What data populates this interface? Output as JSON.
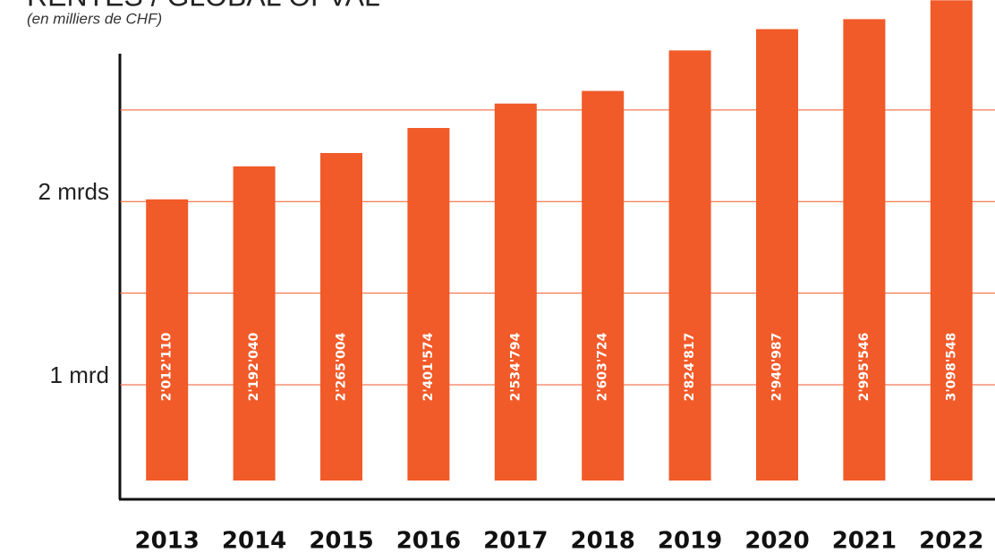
{
  "chart_data": {
    "type": "bar",
    "title": "RENTES / GLOBAL OFVAL",
    "subtitle": "(en milliers de CHF)",
    "categories": [
      "2013",
      "2014",
      "2015",
      "2016",
      "2017",
      "2018",
      "2019",
      "2020",
      "2021",
      "2022"
    ],
    "values": [
      2012110,
      2192040,
      2265004,
      2401574,
      2534794,
      2603724,
      2824817,
      2940987,
      2995546,
      3098548
    ],
    "value_labels": [
      "2'012'110",
      "2'192'040",
      "2'265'004",
      "2'401'574",
      "2'534'794",
      "2'603'724",
      "2'824'817",
      "2'940'987",
      "2'995'546",
      "3'098'548"
    ],
    "color": "#f15a29",
    "ylim": [
      380000,
      3100000
    ],
    "yticks": [
      {
        "value": 1000000,
        "label": "1 mrd"
      },
      {
        "value": 2000000,
        "label": "2 mrds"
      }
    ],
    "minor_yticks": [
      1500000,
      2500000
    ],
    "grid": true
  }
}
